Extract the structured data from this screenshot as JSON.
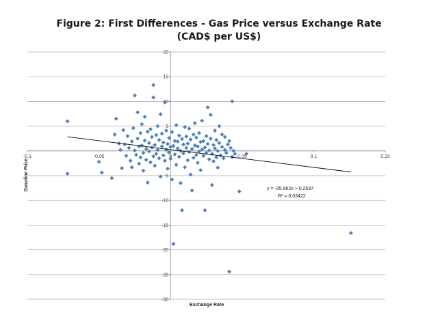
{
  "chart_data": {
    "type": "scatter",
    "title": "Figure 2: First Differences - Gas Price versus Exchange Rate (CAD$ per US$)",
    "xlabel": "Exchange Rate",
    "ylabel": "Gasoline Price",
    "xlim": [
      -0.1,
      0.15
    ],
    "ylim": [
      -30,
      20
    ],
    "x_ticks": [
      -0.1,
      -0.05,
      0,
      0.05,
      0.1,
      0.15
    ],
    "x_tick_labels": [
      "-0.1",
      "-0.05",
      "0",
      "0.05",
      "0.1",
      "0.15"
    ],
    "y_ticks": [
      -30,
      -25,
      -20,
      -15,
      -10,
      -5,
      0,
      5,
      10,
      15,
      20
    ],
    "y_tick_labels": [
      "-30",
      "-25",
      "-20",
      "-15",
      "-10",
      "-5",
      "0",
      "5",
      "10",
      "15",
      "20"
    ],
    "grid": "horizontal",
    "legend": "none",
    "colors": {
      "marker": "#4f81bd",
      "trendline": "#000000",
      "grid": "#a6a6a6"
    },
    "trendline": {
      "equation": "y = -35.962x + 0.2597",
      "r_squared": "R² = 0.03422",
      "slope": -35.962,
      "intercept": 0.2597
    },
    "points": [
      [
        -0.072,
        6.0
      ],
      [
        -0.072,
        -4.6
      ],
      [
        -0.05,
        -2.2
      ],
      [
        -0.048,
        -4.4
      ],
      [
        -0.041,
        -5.5
      ],
      [
        -0.039,
        3.3
      ],
      [
        -0.038,
        6.5
      ],
      [
        -0.036,
        1.5
      ],
      [
        -0.035,
        0.2
      ],
      [
        -0.034,
        -3.5
      ],
      [
        -0.033,
        4.2
      ],
      [
        -0.032,
        1.3
      ],
      [
        -0.031,
        -1.0
      ],
      [
        -0.03,
        3.0
      ],
      [
        -0.029,
        0.6
      ],
      [
        -0.028,
        -2.0
      ],
      [
        -0.027,
        1.9
      ],
      [
        -0.027,
        -3.3
      ],
      [
        -0.026,
        4.6
      ],
      [
        -0.025,
        0.1
      ],
      [
        -0.025,
        11.2
      ],
      [
        -0.024,
        -0.8
      ],
      [
        -0.023,
        2.5
      ],
      [
        -0.023,
        7.8
      ],
      [
        -0.022,
        0.9
      ],
      [
        -0.022,
        -2.6
      ],
      [
        -0.021,
        3.6
      ],
      [
        -0.021,
        -1.3
      ],
      [
        -0.02,
        1.1
      ],
      [
        -0.02,
        5.4
      ],
      [
        -0.019,
        -0.4
      ],
      [
        -0.019,
        -4.0
      ],
      [
        -0.018,
        2.1
      ],
      [
        -0.018,
        6.9
      ],
      [
        -0.017,
        -1.8
      ],
      [
        -0.017,
        0.4
      ],
      [
        -0.016,
        3.9
      ],
      [
        -0.016,
        -6.4
      ],
      [
        -0.015,
        1.6
      ],
      [
        -0.015,
        -0.1
      ],
      [
        -0.014,
        4.4
      ],
      [
        -0.014,
        -2.3
      ],
      [
        -0.013,
        0.7
      ],
      [
        -0.013,
        2.8
      ],
      [
        -0.012,
        -1.1
      ],
      [
        -0.012,
        10.8
      ],
      [
        -0.012,
        13.3
      ],
      [
        -0.011,
        1.2
      ],
      [
        -0.011,
        -3.0
      ],
      [
        -0.01,
        3.2
      ],
      [
        -0.01,
        -0.6
      ],
      [
        -0.009,
        5.0
      ],
      [
        -0.009,
        0.2
      ],
      [
        -0.008,
        -1.5
      ],
      [
        -0.008,
        2.2
      ],
      [
        -0.007,
        7.4
      ],
      [
        -0.007,
        -5.2
      ],
      [
        -0.006,
        0.9
      ],
      [
        -0.006,
        3.5
      ],
      [
        -0.005,
        -0.9
      ],
      [
        -0.005,
        1.7
      ],
      [
        -0.004,
        9.8
      ],
      [
        -0.004,
        -2.0
      ],
      [
        -0.003,
        0.3
      ],
      [
        -0.003,
        4.1
      ],
      [
        -0.002,
        -3.6
      ],
      [
        -0.002,
        1.4
      ],
      [
        -0.001,
        2.6
      ],
      [
        -0.001,
        -0.3
      ],
      [
        0.0,
        0.8
      ],
      [
        0.0,
        -1.6
      ],
      [
        0.001,
        3.8
      ],
      [
        0.001,
        -5.8
      ],
      [
        0.002,
        1.0
      ],
      [
        0.002,
        -18.8
      ],
      [
        0.003,
        2.0
      ],
      [
        0.003,
        -0.7
      ],
      [
        0.004,
        5.2
      ],
      [
        0.004,
        -2.8
      ],
      [
        0.005,
        0.5
      ],
      [
        0.005,
        1.9
      ],
      [
        0.006,
        -1.2
      ],
      [
        0.006,
        3.1
      ],
      [
        0.007,
        -6.5
      ],
      [
        0.007,
        0.0
      ],
      [
        0.008,
        2.4
      ],
      [
        0.008,
        -12.0
      ],
      [
        0.009,
        1.3
      ],
      [
        0.009,
        -0.5
      ],
      [
        0.01,
        4.8
      ],
      [
        0.01,
        -3.3
      ],
      [
        0.011,
        0.6
      ],
      [
        0.011,
        2.9
      ],
      [
        0.012,
        -1.9
      ],
      [
        0.012,
        1.5
      ],
      [
        0.013,
        4.5
      ],
      [
        0.013,
        -0.2
      ],
      [
        0.014,
        -4.8
      ],
      [
        0.014,
        2.3
      ],
      [
        0.015,
        0.4
      ],
      [
        0.015,
        -8.0
      ],
      [
        0.016,
        3.3
      ],
      [
        0.016,
        -1.4
      ],
      [
        0.017,
        1.1
      ],
      [
        0.017,
        5.6
      ],
      [
        0.018,
        -0.8
      ],
      [
        0.018,
        2.7
      ],
      [
        0.019,
        -2.4
      ],
      [
        0.019,
        0.9
      ],
      [
        0.02,
        3.6
      ],
      [
        0.02,
        -0.1
      ],
      [
        0.021,
        1.8
      ],
      [
        0.021,
        -3.9
      ],
      [
        0.022,
        0.3
      ],
      [
        0.022,
        6.1
      ],
      [
        0.023,
        -1.0
      ],
      [
        0.023,
        2.0
      ],
      [
        0.024,
        0.7
      ],
      [
        0.024,
        -12.0
      ],
      [
        0.025,
        3.0
      ],
      [
        0.025,
        -0.4
      ],
      [
        0.026,
        8.8
      ],
      [
        0.026,
        1.4
      ],
      [
        0.027,
        -1.7
      ],
      [
        0.027,
        0.1
      ],
      [
        0.028,
        7.3
      ],
      [
        0.028,
        2.5
      ],
      [
        0.029,
        -0.6
      ],
      [
        0.029,
        -6.9
      ],
      [
        0.03,
        1.2
      ],
      [
        0.03,
        -2.1
      ],
      [
        0.031,
        4.1
      ],
      [
        0.031,
        0.5
      ],
      [
        0.032,
        -1.3
      ],
      [
        0.032,
        2.2
      ],
      [
        0.033,
        0.0
      ],
      [
        0.033,
        -3.4
      ],
      [
        0.034,
        1.6
      ],
      [
        0.034,
        5.0
      ],
      [
        0.035,
        -0.9
      ],
      [
        0.036,
        0.8
      ],
      [
        0.036,
        3.3
      ],
      [
        0.037,
        -1.5
      ],
      [
        0.038,
        2.8
      ],
      [
        0.038,
        0.2
      ],
      [
        0.039,
        -0.4
      ],
      [
        0.04,
        1.3
      ],
      [
        0.041,
        -24.4
      ],
      [
        0.041,
        2.0
      ],
      [
        0.042,
        0.6
      ],
      [
        0.043,
        10.0
      ],
      [
        0.043,
        -1.2
      ],
      [
        0.044,
        0.0
      ],
      [
        0.045,
        -0.6
      ],
      [
        0.048,
        -8.2
      ],
      [
        0.053,
        -0.6
      ],
      [
        0.126,
        -16.6
      ]
    ]
  }
}
